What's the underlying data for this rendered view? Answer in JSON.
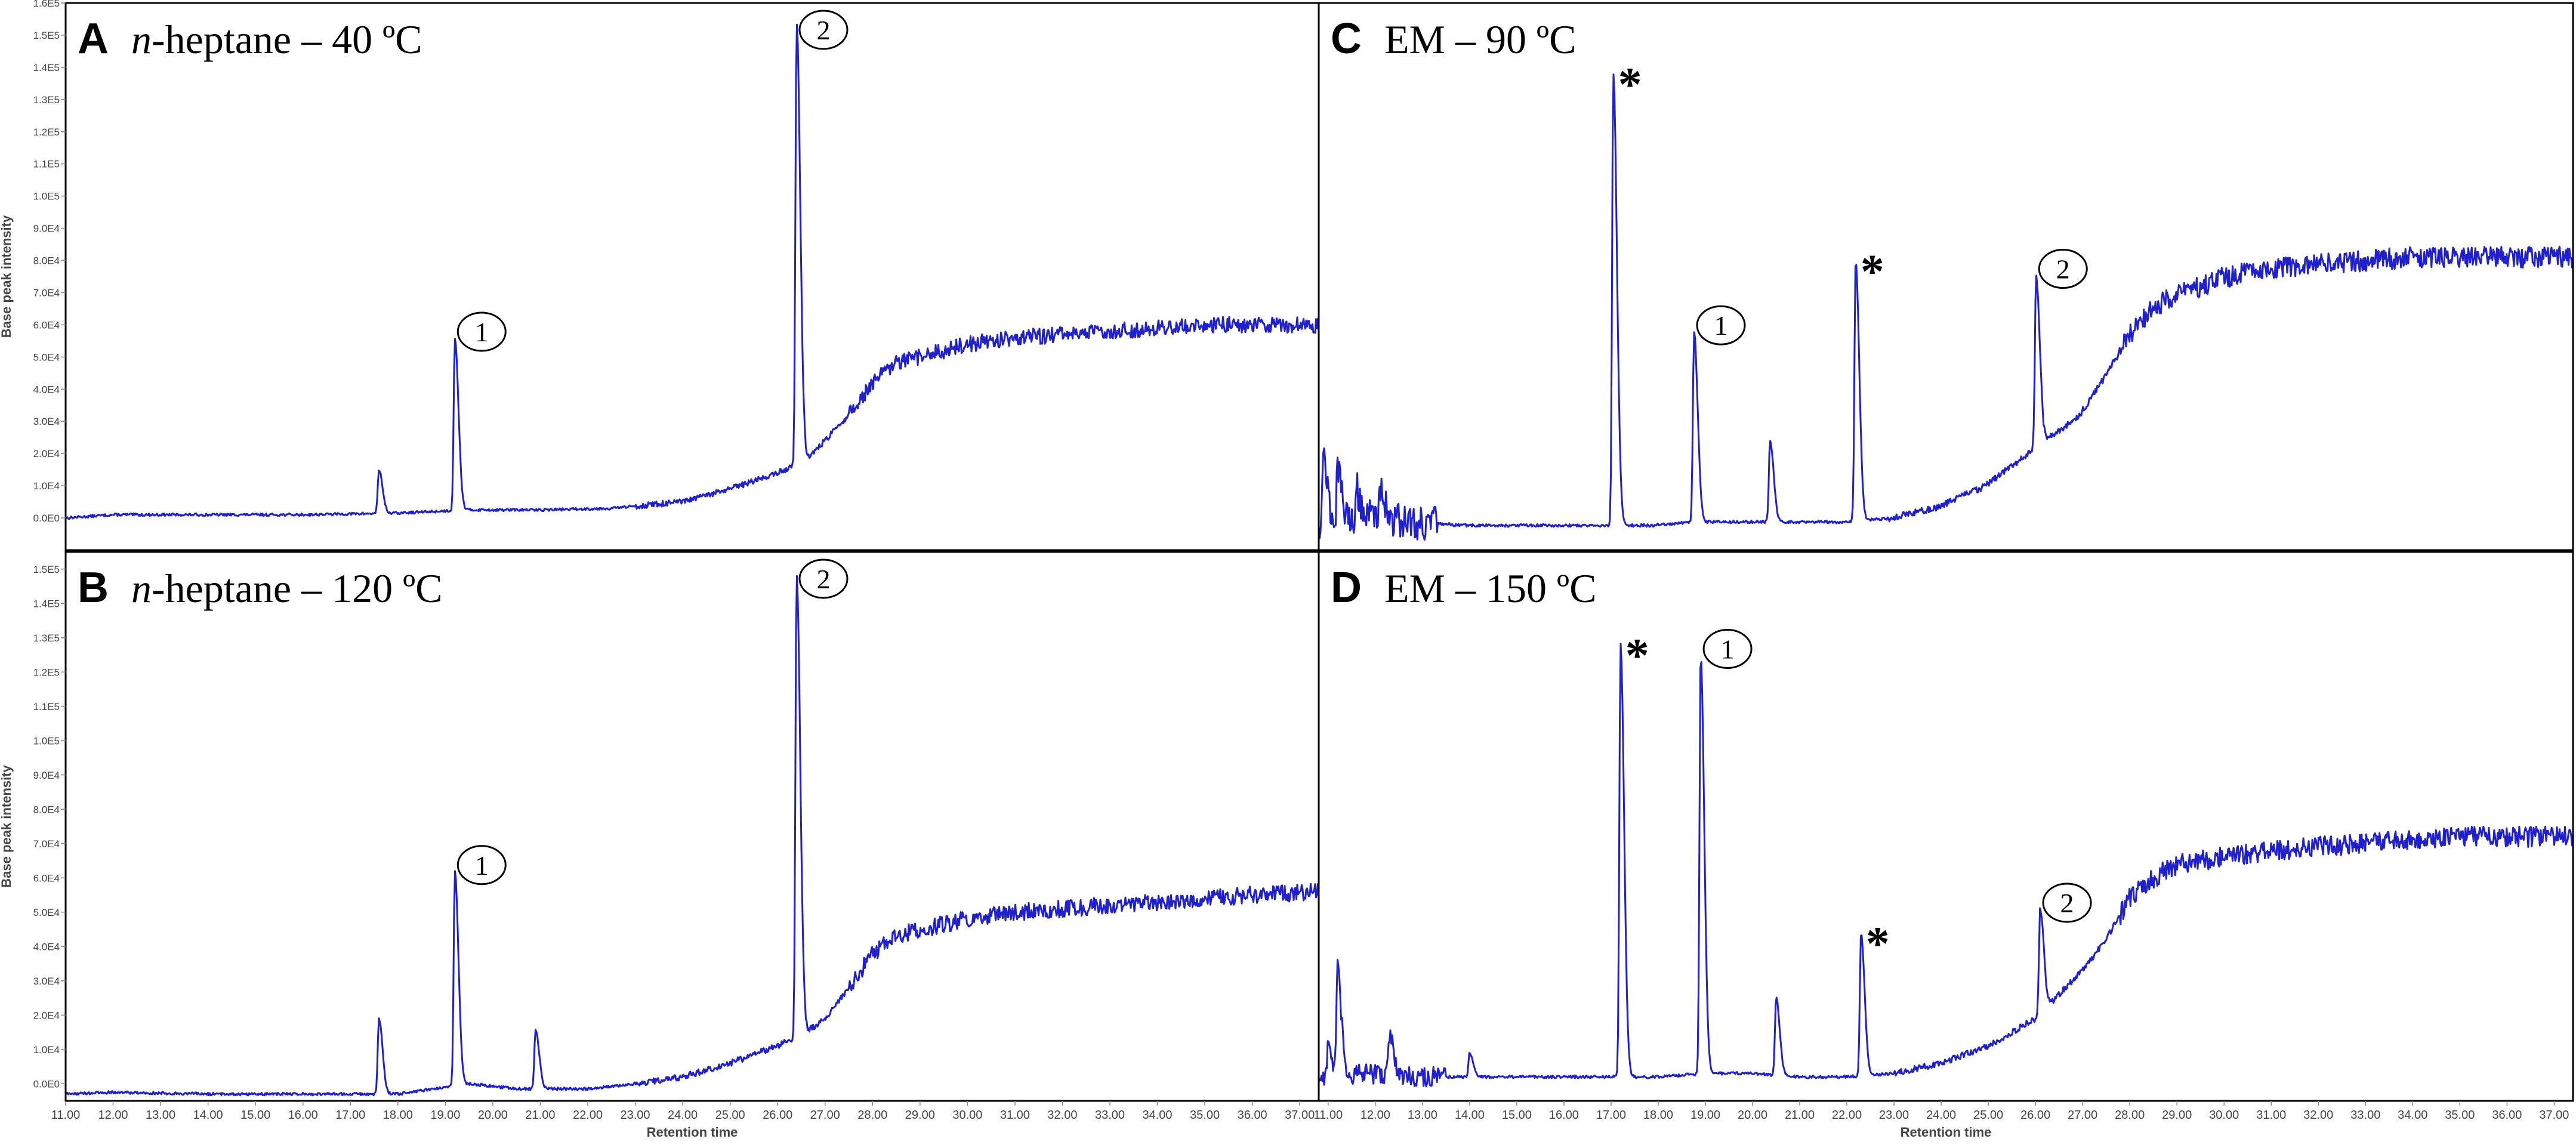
{
  "chart_data": [
    {
      "type": "line",
      "panel_letter": "A",
      "title_italic": "n",
      "title_rest": "-heptane – 40 ºC",
      "ylabel": "Base peak intensity",
      "xlabel": "",
      "xlim": [
        11.0,
        37.4
      ],
      "ylim": [
        -10000,
        160000
      ],
      "yticks": [
        0,
        10000,
        20000,
        30000,
        40000,
        50000,
        60000,
        70000,
        80000,
        90000,
        100000,
        110000,
        120000,
        130000,
        140000,
        150000,
        160000
      ],
      "ytick_labels": [
        "0.0E0",
        "1.0E4",
        "2.0E4",
        "3.0E4",
        "4.0E4",
        "5.0E4",
        "6.0E4",
        "7.0E4",
        "8.0E4",
        "9.0E4",
        "1.0E5",
        "1.1E5",
        "1.2E5",
        "1.3E5",
        "1.4E5",
        "1.5E5",
        "1.6E5"
      ],
      "baseline": [
        [
          11.0,
          0
        ],
        [
          12.0,
          1000
        ],
        [
          14.0,
          1000
        ],
        [
          16.0,
          1000
        ],
        [
          18.0,
          1500
        ],
        [
          19.5,
          2500
        ],
        [
          21.0,
          2500
        ],
        [
          22.5,
          3000
        ],
        [
          24.0,
          5000
        ],
        [
          25.0,
          9000
        ],
        [
          26.0,
          14000
        ],
        [
          26.6,
          18000
        ],
        [
          27.0,
          24000
        ],
        [
          27.5,
          32000
        ],
        [
          28.0,
          42000
        ],
        [
          28.5,
          48000
        ],
        [
          29.0,
          50000
        ],
        [
          30.0,
          54000
        ],
        [
          31.0,
          56000
        ],
        [
          32.0,
          57000
        ],
        [
          33.0,
          58000
        ],
        [
          34.0,
          59000
        ],
        [
          35.0,
          60000
        ],
        [
          36.0,
          60000
        ],
        [
          37.4,
          60000
        ]
      ],
      "noise": 2500,
      "noise_start": 27.5,
      "peaks": [
        [
          17.6,
          15000
        ],
        [
          19.2,
          56000
        ],
        [
          26.4,
          154000
        ]
      ],
      "annotations": [
        {
          "label": "1",
          "style": "circle",
          "x": 19.2,
          "y": 56000
        },
        {
          "label": "2",
          "style": "circle",
          "x": 26.4,
          "y": 154000
        }
      ]
    },
    {
      "type": "line",
      "panel_letter": "B",
      "title_italic": "n",
      "title_rest": "-heptane – 120 ºC",
      "ylabel": "Base peak intensity",
      "xlabel": "Retention time",
      "xlim": [
        11.0,
        37.4
      ],
      "ylim": [
        -5000,
        155000
      ],
      "yticks": [
        0,
        10000,
        20000,
        30000,
        40000,
        50000,
        60000,
        70000,
        80000,
        90000,
        100000,
        110000,
        120000,
        130000,
        140000,
        150000
      ],
      "ytick_labels": [
        "0.0E0",
        "1.0E4",
        "2.0E4",
        "3.0E4",
        "4.0E4",
        "5.0E4",
        "6.0E4",
        "7.0E4",
        "8.0E4",
        "9.0E4",
        "1.0E5",
        "1.1E5",
        "1.2E5",
        "1.3E5",
        "1.4E5",
        "1.5E5"
      ],
      "xticks": [
        11,
        12,
        13,
        14,
        15,
        16,
        17,
        18,
        19,
        20,
        21,
        22,
        23,
        24,
        25,
        26,
        27,
        28,
        29,
        30,
        31,
        32,
        33,
        34,
        35,
        36,
        37
      ],
      "xtick_labels": [
        "11.00",
        "12.00",
        "13.00",
        "14.00",
        "15.00",
        "16.00",
        "17.00",
        "18.00",
        "19.00",
        "20.00",
        "21.00",
        "22.00",
        "23.00",
        "24.00",
        "25.00",
        "26.00",
        "27.00",
        "28.00",
        "29.00",
        "30.00",
        "31.00",
        "32.00",
        "33.00",
        "34.00",
        "35.00",
        "36.00",
        "37.00"
      ],
      "baseline": [
        [
          11.0,
          -3000
        ],
        [
          12.0,
          -2500
        ],
        [
          14.0,
          -3000
        ],
        [
          16.0,
          -3000
        ],
        [
          18.0,
          -3000
        ],
        [
          19.5,
          0
        ],
        [
          20.5,
          -1500
        ],
        [
          22.0,
          -1500
        ],
        [
          23.0,
          0
        ],
        [
          24.0,
          2000
        ],
        [
          25.0,
          6000
        ],
        [
          26.0,
          11000
        ],
        [
          26.6,
          15000
        ],
        [
          27.0,
          19000
        ],
        [
          27.5,
          28000
        ],
        [
          28.0,
          38000
        ],
        [
          28.5,
          43000
        ],
        [
          29.0,
          45000
        ],
        [
          30.0,
          48000
        ],
        [
          31.0,
          50000
        ],
        [
          32.0,
          51000
        ],
        [
          33.0,
          52000
        ],
        [
          34.0,
          53000
        ],
        [
          35.0,
          54000
        ],
        [
          36.0,
          55000
        ],
        [
          37.4,
          56000
        ]
      ],
      "noise": 2500,
      "noise_start": 27.5,
      "peaks": [
        [
          17.6,
          19000
        ],
        [
          19.2,
          62000
        ],
        [
          20.9,
          16000
        ],
        [
          26.4,
          149000
        ]
      ],
      "annotations": [
        {
          "label": "1",
          "style": "circle",
          "x": 19.2,
          "y": 62000
        },
        {
          "label": "2",
          "style": "circle",
          "x": 26.4,
          "y": 149000
        }
      ]
    },
    {
      "type": "line",
      "panel_letter": "C",
      "title_italic": "",
      "title_rest": "EM – 90 ºC",
      "ylabel": "",
      "xlabel": "",
      "xlim": [
        11.0,
        37.4
      ],
      "ylim": [
        -5000,
        150000
      ],
      "baseline": [
        [
          11.0,
          3000
        ],
        [
          12.0,
          5000
        ],
        [
          13.0,
          3000
        ],
        [
          14.0,
          2000
        ],
        [
          16.0,
          2000
        ],
        [
          17.0,
          2000
        ],
        [
          18.0,
          2000
        ],
        [
          19.0,
          3000
        ],
        [
          20.0,
          3000
        ],
        [
          21.0,
          3000
        ],
        [
          22.0,
          3000
        ],
        [
          23.0,
          4000
        ],
        [
          24.0,
          7000
        ],
        [
          25.0,
          13000
        ],
        [
          26.0,
          23000
        ],
        [
          27.0,
          33000
        ],
        [
          27.5,
          43000
        ],
        [
          28.0,
          55000
        ],
        [
          28.5,
          63000
        ],
        [
          29.0,
          67000
        ],
        [
          30.0,
          72000
        ],
        [
          31.0,
          75000
        ],
        [
          32.0,
          76000
        ],
        [
          33.0,
          77000
        ],
        [
          34.0,
          78000
        ],
        [
          35.0,
          78000
        ],
        [
          36.0,
          78000
        ],
        [
          37.4,
          78000
        ]
      ],
      "noise": 3000,
      "noise_start": 27.8,
      "early_noise": 5000,
      "peaks": [
        [
          11.1,
          22000
        ],
        [
          11.4,
          17000
        ],
        [
          11.8,
          12000
        ],
        [
          12.3,
          14000
        ],
        [
          17.2,
          130000
        ],
        [
          18.9,
          57000
        ],
        [
          20.5,
          26000
        ],
        [
          22.3,
          77000
        ],
        [
          26.1,
          73000
        ]
      ],
      "annotations": [
        {
          "label": "*",
          "style": "star",
          "x": 17.2,
          "y": 130000
        },
        {
          "label": "1",
          "style": "circle",
          "x": 18.9,
          "y": 57000
        },
        {
          "label": "*",
          "style": "star",
          "x": 22.3,
          "y": 77000
        },
        {
          "label": "2",
          "style": "circle",
          "x": 26.1,
          "y": 73000
        }
      ]
    },
    {
      "type": "line",
      "panel_letter": "D",
      "title_italic": "",
      "title_rest": "EM – 150 ºC",
      "ylabel": "",
      "xlabel": "Retention time",
      "xlim": [
        10.8,
        37.4
      ],
      "ylim": [
        -5000,
        155000
      ],
      "xticks": [
        11,
        12,
        13,
        14,
        15,
        16,
        17,
        18,
        19,
        20,
        21,
        22,
        23,
        24,
        25,
        26,
        27,
        28,
        29,
        30,
        31,
        32,
        33,
        34,
        35,
        36,
        37
      ],
      "xtick_labels": [
        "11.00",
        "12.00",
        "13.00",
        "14.00",
        "15.00",
        "16.00",
        "17.00",
        "18.00",
        "19.00",
        "20.00",
        "21.00",
        "22.00",
        "23.00",
        "24.00",
        "25.00",
        "26.00",
        "27.00",
        "28.00",
        "29.00",
        "30.00",
        "31.00",
        "32.00",
        "33.00",
        "34.00",
        "35.00",
        "36.00",
        "37.00"
      ],
      "baseline": [
        [
          10.8,
          2000
        ],
        [
          12.0,
          3000
        ],
        [
          13.0,
          2000
        ],
        [
          14.0,
          2000
        ],
        [
          16.0,
          2000
        ],
        [
          17.0,
          2000
        ],
        [
          18.0,
          2000
        ],
        [
          19.0,
          3000
        ],
        [
          20.0,
          3000
        ],
        [
          21.0,
          2000
        ],
        [
          22.0,
          2000
        ],
        [
          23.0,
          3000
        ],
        [
          24.0,
          6000
        ],
        [
          25.0,
          11000
        ],
        [
          26.0,
          19000
        ],
        [
          27.0,
          33000
        ],
        [
          27.5,
          42000
        ],
        [
          28.0,
          54000
        ],
        [
          28.5,
          60000
        ],
        [
          29.0,
          64000
        ],
        [
          30.0,
          66000
        ],
        [
          31.0,
          68000
        ],
        [
          32.0,
          69000
        ],
        [
          33.0,
          70000
        ],
        [
          34.0,
          71000
        ],
        [
          35.0,
          72000
        ],
        [
          36.0,
          72000
        ],
        [
          37.4,
          72000
        ]
      ],
      "noise": 3000,
      "noise_start": 27.8,
      "early_noise": 3000,
      "peaks": [
        [
          11.0,
          11000
        ],
        [
          11.2,
          33000
        ],
        [
          12.3,
          15000
        ],
        [
          14.0,
          9000
        ],
        [
          17.2,
          128000
        ],
        [
          18.9,
          125000
        ],
        [
          20.5,
          25000
        ],
        [
          22.3,
          44000
        ],
        [
          26.1,
          51000
        ]
      ],
      "annotations": [
        {
          "label": "*",
          "style": "star",
          "x": 17.2,
          "y": 128000
        },
        {
          "label": "1",
          "style": "circle",
          "x": 18.9,
          "y": 125000
        },
        {
          "label": "*",
          "style": "star",
          "x": 22.3,
          "y": 44000
        },
        {
          "label": "2",
          "style": "circle",
          "x": 26.1,
          "y": 51000
        }
      ]
    }
  ]
}
